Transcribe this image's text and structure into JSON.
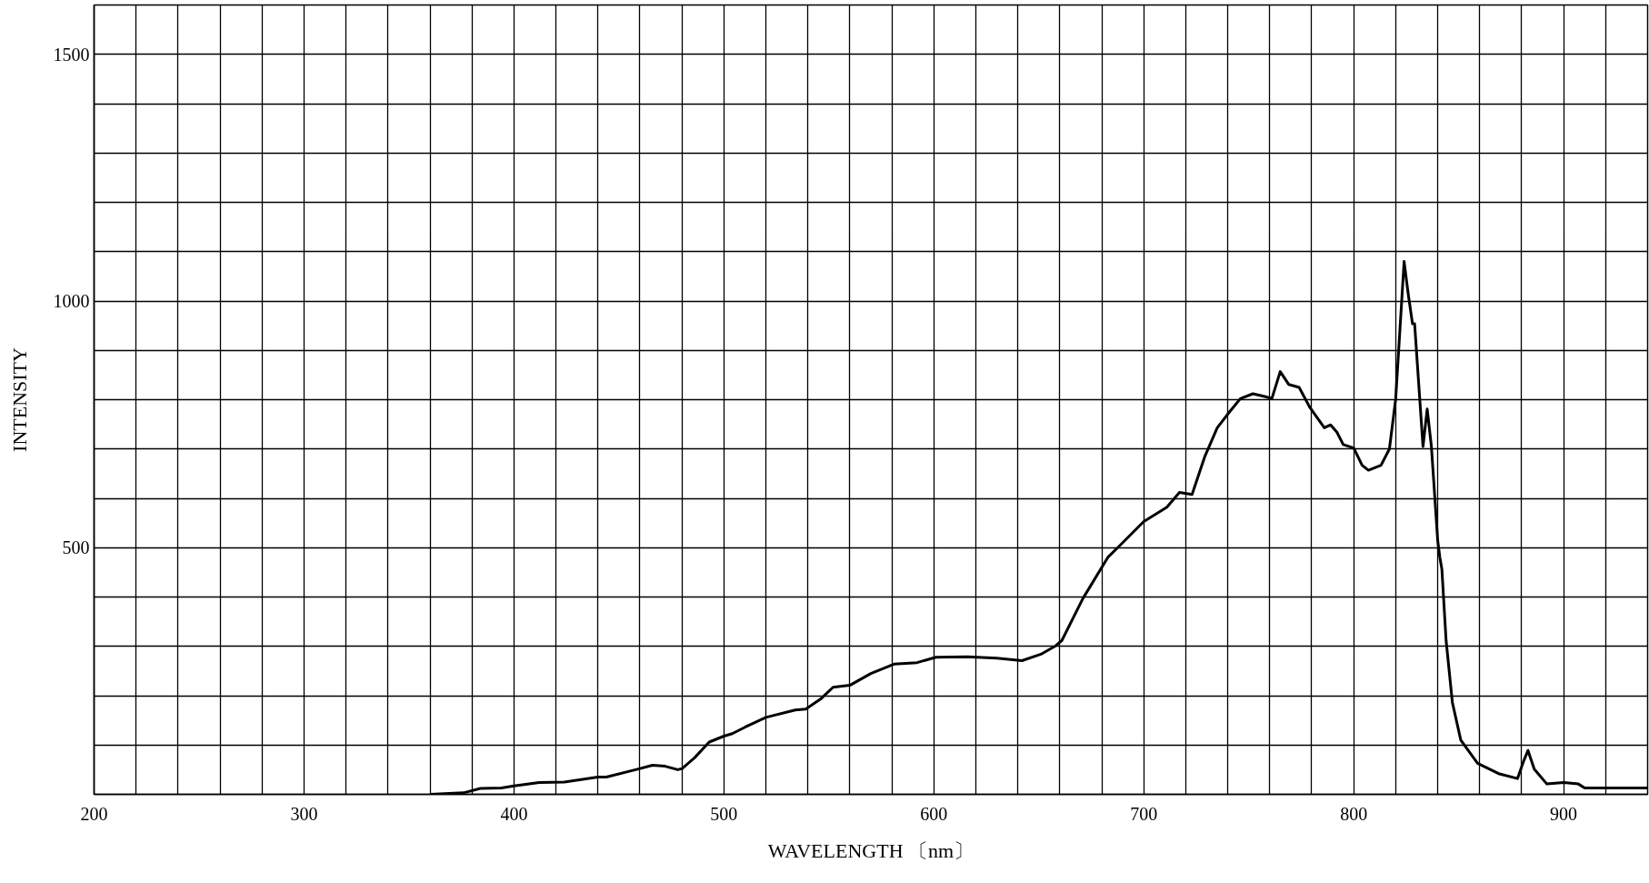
{
  "chart_data": {
    "type": "line",
    "xlabel": "WAVELENGTH 〔nm〕",
    "ylabel": "INTENSITY",
    "x": [
      360,
      376,
      384,
      394,
      400,
      412,
      424,
      440,
      444,
      458,
      466,
      472,
      478,
      480,
      486,
      493,
      500,
      504,
      510,
      520,
      534,
      539,
      546,
      552,
      560,
      570,
      581,
      592,
      601,
      616,
      630,
      642,
      651,
      658,
      661,
      671,
      683,
      689,
      700,
      711,
      717,
      723,
      729,
      735,
      741,
      746,
      752,
      758,
      761,
      765,
      769,
      774,
      779,
      786,
      789,
      792,
      795,
      800,
      804,
      807,
      813,
      817,
      820,
      824,
      826,
      828,
      829,
      833,
      835,
      837,
      840,
      841,
      842,
      844,
      847,
      851,
      859,
      869,
      878,
      881,
      883,
      886,
      892,
      900,
      907,
      910,
      940
    ],
    "series": [
      {
        "color": "#000000",
        "values": [
          0,
          3,
          12,
          13,
          17,
          24,
          25,
          35,
          35,
          50,
          59,
          57,
          50,
          52,
          74,
          106,
          118,
          123,
          136,
          156,
          171,
          173,
          193,
          217,
          221,
          245,
          264,
          267,
          278,
          279,
          276,
          271,
          284,
          301,
          312,
          397,
          481,
          506,
          553,
          582,
          612,
          608,
          684,
          743,
          776,
          802,
          812,
          806,
          802,
          857,
          831,
          825,
          785,
          743,
          749,
          734,
          709,
          702,
          667,
          657,
          667,
          700,
          802,
          1080,
          1013,
          954,
          954,
          705,
          781,
          705,
          515,
          481,
          456,
          312,
          186,
          110,
          63,
          42,
          32,
          68,
          89,
          51,
          21,
          24,
          21,
          13,
          13
        ]
      }
    ],
    "xlim": [
      200,
      940
    ],
    "ylim": [
      0,
      1600
    ],
    "xticks": [
      200,
      {
        "value": 220,
        "label": null
      },
      {
        "value": 240,
        "label": null
      },
      {
        "value": 260,
        "label": null
      },
      {
        "value": 280,
        "label": null
      },
      300,
      {
        "value": 320,
        "label": null
      },
      {
        "value": 340,
        "label": null
      },
      {
        "value": 360,
        "label": null
      },
      {
        "value": 380,
        "label": null
      },
      400,
      {
        "value": 420,
        "label": null
      },
      {
        "value": 440,
        "label": null
      },
      {
        "value": 460,
        "label": null
      },
      {
        "value": 480,
        "label": null
      },
      500,
      {
        "value": 520,
        "label": null
      },
      {
        "value": 540,
        "label": null
      },
      {
        "value": 560,
        "label": null
      },
      {
        "value": 580,
        "label": null
      },
      600,
      {
        "value": 620,
        "label": null
      },
      {
        "value": 640,
        "label": null
      },
      {
        "value": 660,
        "label": null
      },
      {
        "value": 680,
        "label": null
      },
      700,
      {
        "value": 720,
        "label": null
      },
      {
        "value": 740,
        "label": null
      },
      {
        "value": 760,
        "label": null
      },
      {
        "value": 780,
        "label": null
      },
      800,
      {
        "value": 820,
        "label": null
      },
      {
        "value": 840,
        "label": null
      },
      {
        "value": 860,
        "label": null
      },
      {
        "value": 880,
        "label": null
      },
      900,
      {
        "value": 920,
        "label": null
      }
    ],
    "yticks": [
      {
        "value": 100,
        "label": null
      },
      {
        "value": 200,
        "label": null
      },
      {
        "value": 300,
        "label": null
      },
      {
        "value": 400,
        "label": null
      },
      500,
      {
        "value": 600,
        "label": null
      },
      {
        "value": 700,
        "label": null
      },
      {
        "value": 800,
        "label": null
      },
      {
        "value": 900,
        "label": null
      },
      1000,
      {
        "value": 1100,
        "label": null
      },
      {
        "value": 1200,
        "label": null
      },
      {
        "value": 1300,
        "label": null
      },
      {
        "value": 1400,
        "label": null
      },
      1500
    ],
    "grid": true,
    "marker": "none",
    "line_style": "solid"
  }
}
